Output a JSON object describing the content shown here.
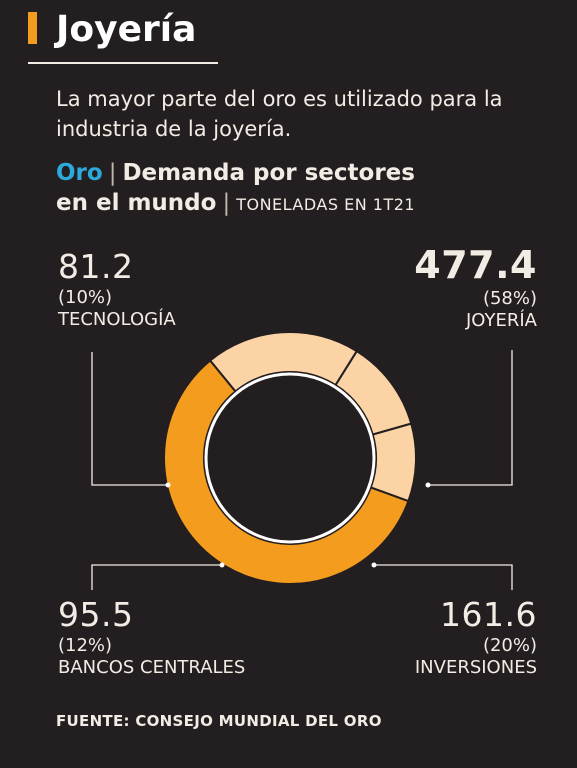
{
  "header": {
    "title": "Joyería",
    "subtitle": "La mayor parte del oro es utilizado para la industria de la joyería."
  },
  "heading": {
    "metal": "Oro",
    "line1": "Demanda por sectores",
    "line2": "en el mundo",
    "units": "TONELADAS EN 1T21"
  },
  "chart_data": {
    "type": "pie",
    "title": "Demanda por sectores en el mundo",
    "unit": "TONELADAS EN 1T21",
    "slices": [
      {
        "label": "JOYERÍA",
        "value": 477.4,
        "value_text": "477.4",
        "percent": "(58%)",
        "color": "#f39c1e"
      },
      {
        "label": "INVERSIONES",
        "value": 161.6,
        "value_text": "161.6",
        "percent": "(20%)",
        "color": "#fcd3a5"
      },
      {
        "label": "BANCOS CENTRALES",
        "value": 95.5,
        "value_text": "95.5",
        "percent": "(12%)",
        "color": "#fcd3a5"
      },
      {
        "label": "TECNOLOGÍA",
        "value": 81.2,
        "value_text": "81.2",
        "percent": "(10%)",
        "color": "#fcd3a5"
      }
    ]
  },
  "source": "FUENTE: CONSEJO MUNDIAL DEL ORO",
  "colors": {
    "background": "#231f20",
    "accent_orange": "#f39c1e",
    "accent_light": "#fcd3a5",
    "accent_blue": "#2ea9dc"
  }
}
